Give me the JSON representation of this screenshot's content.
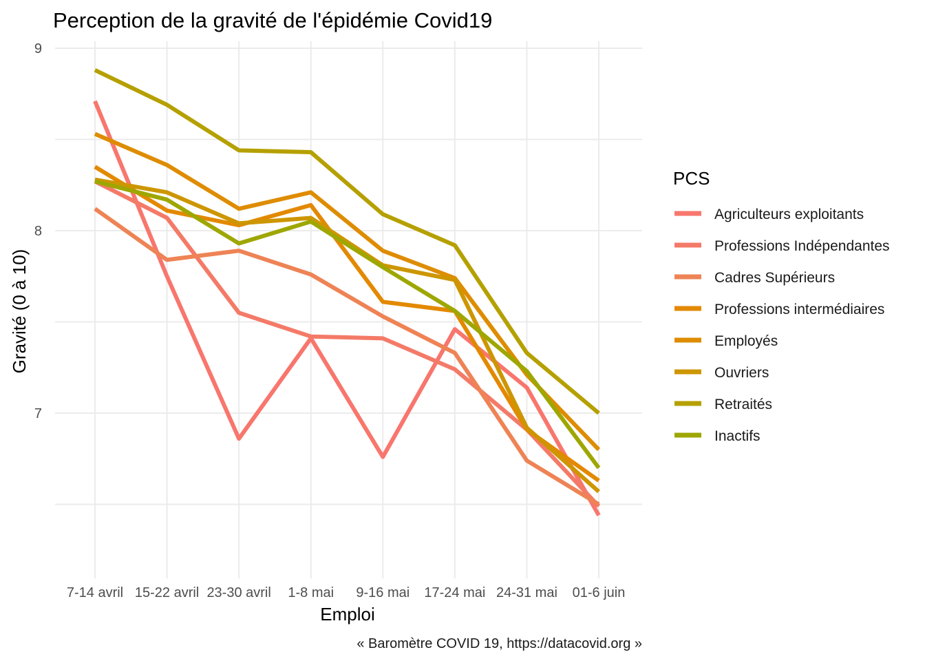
{
  "chart_data": {
    "type": "line",
    "title": "Perception de la gravité de l'épidémie Covid19",
    "xlabel": "Emploi",
    "ylabel": "Gravité (0 à 10)",
    "caption": "« Baromètre COVID 19, https://datacovid.org »",
    "categories": [
      "7-14 avril",
      "15-22 avril",
      "23-30 avril",
      "1-8 mai",
      "9-16 mai",
      "17-24 mai",
      "24-31 mai",
      "01-6 juin"
    ],
    "ylim": [
      6.15,
      9.0
    ],
    "yticks": [
      7,
      8,
      9
    ],
    "grid": true,
    "legend": {
      "title": "PCS",
      "position": "right"
    },
    "series": [
      {
        "name": "Agriculteurs exploitants",
        "color": "#F8766D",
        "values": [
          8.71,
          7.75,
          6.86,
          7.41,
          6.76,
          7.46,
          7.14,
          6.44
        ]
      },
      {
        "name": "Professions Indépendantes",
        "color": "#F47A68",
        "values": [
          8.27,
          8.07,
          7.55,
          7.42,
          7.41,
          7.24,
          6.91,
          6.49
        ]
      },
      {
        "name": "Cadres Supérieurs",
        "color": "#EE8355",
        "values": [
          8.12,
          7.84,
          7.89,
          7.76,
          7.53,
          7.33,
          6.74,
          6.5
        ]
      },
      {
        "name": "Professions intermédiaires",
        "color": "#E38900",
        "values": [
          8.35,
          8.11,
          8.03,
          8.14,
          7.61,
          7.56,
          6.91,
          6.63
        ]
      },
      {
        "name": "Employés",
        "color": "#DE8C00",
        "values": [
          8.53,
          8.36,
          8.12,
          8.21,
          7.89,
          7.74,
          7.21,
          6.8
        ]
      },
      {
        "name": "Ouvriers",
        "color": "#CD9600",
        "values": [
          8.28,
          8.21,
          8.04,
          8.07,
          7.81,
          7.73,
          6.92,
          6.57
        ]
      },
      {
        "name": "Retraités",
        "color": "#B5A000",
        "values": [
          8.88,
          8.69,
          8.44,
          8.43,
          8.09,
          7.92,
          7.33,
          7.0
        ]
      },
      {
        "name": "Inactifs",
        "color": "#9EA700",
        "values": [
          8.27,
          8.17,
          7.93,
          8.05,
          7.8,
          7.56,
          7.23,
          6.7
        ]
      }
    ]
  }
}
